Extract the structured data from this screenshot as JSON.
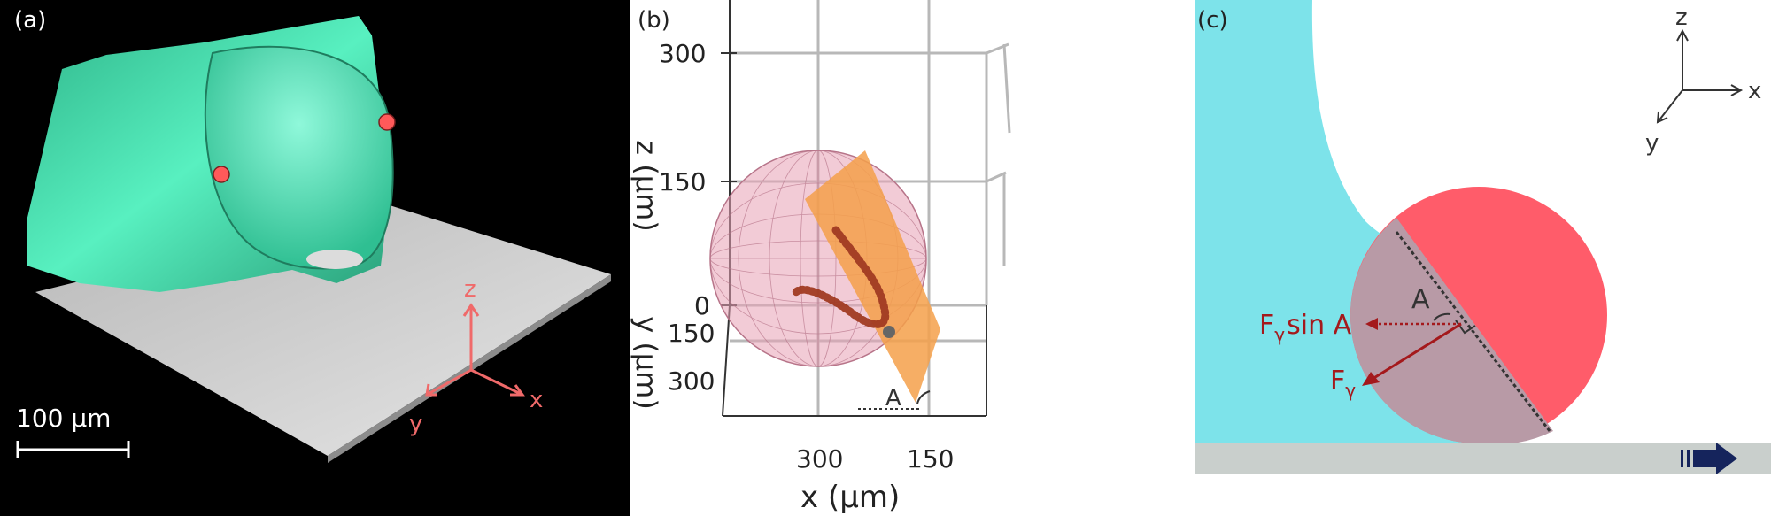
{
  "panel_a": {
    "label": "(a)",
    "scale_bar_label": "100 µm",
    "axes": {
      "z": "z",
      "x": "x",
      "y": "y"
    },
    "colors": {
      "background": "#000000",
      "droplet": "#3fe3b0",
      "substrate": "#c9c9c9",
      "marker": "#ff5a5a",
      "axes": "#f06a6a"
    }
  },
  "panel_b": {
    "label": "(b)",
    "z_axis": {
      "label": "z (µm)",
      "ticks": [
        "0",
        "150",
        "300"
      ]
    },
    "y_axis": {
      "label": "y (µm)",
      "ticks": [
        "150",
        "300"
      ]
    },
    "x_axis": {
      "label": "x (µm)",
      "ticks": [
        "300",
        "150"
      ]
    },
    "angle_label": "A",
    "colors": {
      "sphere": "#e8a0b4",
      "plane": "#f5a04a",
      "contact_line": "#a03a22"
    }
  },
  "panel_c": {
    "label": "(c)",
    "axes": {
      "z": "z",
      "x": "x",
      "y": "y"
    },
    "force_label": "F",
    "force_subscript": "γ",
    "sin_suffix": "sin A",
    "angle_label": "A",
    "colors": {
      "liquid": "#7de3ea",
      "particle": "#ff5c6a",
      "overlap": "#b89aa6",
      "substrate": "#c9cfcc",
      "force": "#a4191c",
      "arrow": "#15245c"
    }
  }
}
